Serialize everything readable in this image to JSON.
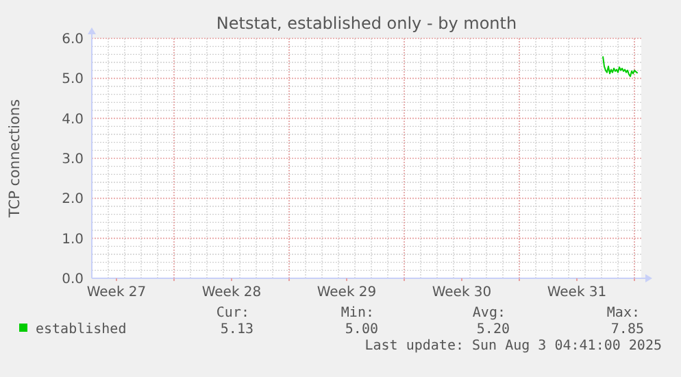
{
  "chart_data": {
    "type": "line",
    "title": "Netstat, established only - by month",
    "ylabel": "TCP connections",
    "xlim": [
      "2025-07-01T00:00",
      "2025-08-03T10:00"
    ],
    "xticks": [
      {
        "value": "2025-07-02T12:00",
        "label": "Week 27"
      },
      {
        "value": "2025-07-06T00:00",
        "label": null
      },
      {
        "value": "2025-07-09T12:00",
        "label": "Week 28"
      },
      {
        "value": "2025-07-13T00:00",
        "label": null
      },
      {
        "value": "2025-07-16T12:00",
        "label": "Week 29"
      },
      {
        "value": "2025-07-20T00:00",
        "label": null
      },
      {
        "value": "2025-07-23T12:00",
        "label": "Week 30"
      },
      {
        "value": "2025-07-27T00:00",
        "label": null
      },
      {
        "value": "2025-07-30T12:00",
        "label": "Week 31"
      },
      {
        "value": "2025-08-03T00:00",
        "label": null
      }
    ],
    "ylim": [
      0,
      6
    ],
    "yticks": [
      {
        "value": 0,
        "label": "0.0"
      },
      {
        "value": 1,
        "label": "1.0"
      },
      {
        "value": 2,
        "label": "2.0"
      },
      {
        "value": 3,
        "label": "3.0"
      },
      {
        "value": 4,
        "label": "4.0"
      },
      {
        "value": 5,
        "label": "5.0"
      },
      {
        "value": 6,
        "label": "6.0"
      }
    ],
    "grid": true,
    "legend": "bottom",
    "series": [
      {
        "name": "established",
        "color": "#00cc00",
        "x": [
          "2025-08-01T02:00",
          "2025-08-01T04:00",
          "2025-08-01T06:00",
          "2025-08-01T08:00",
          "2025-08-01T10:00",
          "2025-08-01T12:00",
          "2025-08-01T14:00",
          "2025-08-01T16:00",
          "2025-08-01T18:00",
          "2025-08-01T20:00",
          "2025-08-01T22:00",
          "2025-08-02T00:00",
          "2025-08-02T02:00",
          "2025-08-02T04:00",
          "2025-08-02T06:00",
          "2025-08-02T08:00",
          "2025-08-02T10:00",
          "2025-08-02T12:00",
          "2025-08-02T14:00",
          "2025-08-02T16:00",
          "2025-08-02T18:00",
          "2025-08-02T20:00",
          "2025-08-02T22:00",
          "2025-08-03T00:00",
          "2025-08-03T04:41"
        ],
        "values": [
          5.55,
          5.3,
          5.2,
          5.15,
          5.3,
          5.12,
          5.22,
          5.15,
          5.25,
          5.18,
          5.22,
          5.15,
          5.28,
          5.2,
          5.25,
          5.18,
          5.22,
          5.15,
          5.2,
          5.1,
          5.05,
          5.18,
          5.12,
          5.2,
          5.13
        ]
      }
    ],
    "annotations": [
      "Cur:",
      "5.13",
      "Min:",
      "5.00",
      "Avg:",
      "5.20",
      "Max:",
      "7.85",
      "Last update: Sun Aug  3 04:41:00 2025"
    ]
  }
}
